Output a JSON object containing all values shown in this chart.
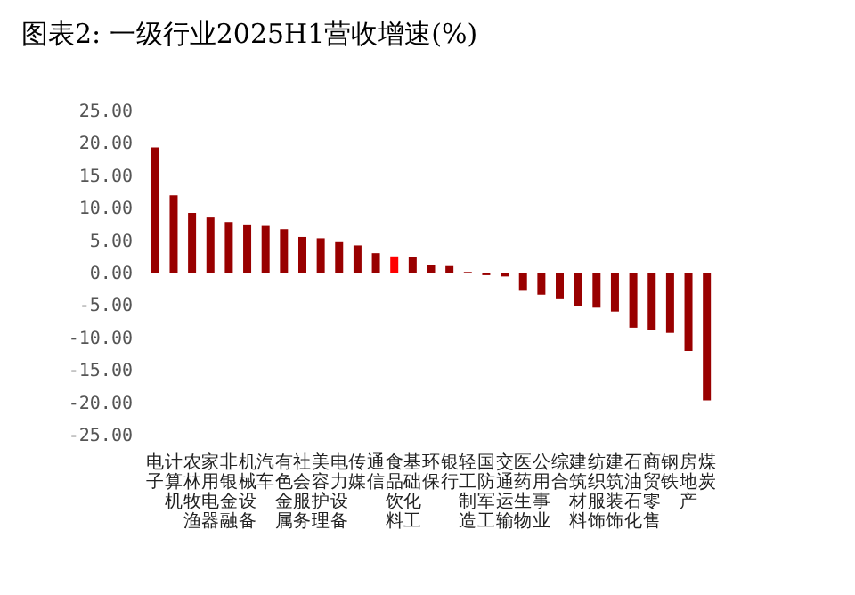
{
  "chart_data": {
    "type": "bar",
    "title": "图表2: 一级行业2025H1营收增速(%)",
    "categories": [
      "电子",
      "计算机",
      "农林牧渔",
      "家用电器",
      "非银金融",
      "机械设备",
      "汽车",
      "有色金属",
      "社会服务",
      "美容护理",
      "电力设备",
      "传媒",
      "通信",
      "食品饮料",
      "基础化工",
      "环保",
      "银行",
      "轻工制造",
      "国防军工",
      "交通运输",
      "医药生物",
      "公用事业",
      "综合",
      "建筑材料",
      "纺织服饰",
      "建筑装饰",
      "石油石化",
      "商贸零售",
      "钢铁",
      "房地产",
      "煤炭"
    ],
    "values": [
      19.3,
      11.9,
      9.2,
      8.5,
      7.8,
      7.3,
      7.2,
      6.7,
      5.5,
      5.3,
      4.7,
      4.2,
      3.0,
      2.5,
      2.4,
      1.2,
      1.0,
      0.1,
      -0.4,
      -0.6,
      -2.8,
      -3.4,
      -4.1,
      -5.1,
      -5.4,
      -6.0,
      -8.5,
      -8.9,
      -9.3,
      -12.1,
      -19.7
    ],
    "colors": [
      "#990000",
      "#990000",
      "#990000",
      "#990000",
      "#990000",
      "#990000",
      "#990000",
      "#990000",
      "#990000",
      "#990000",
      "#990000",
      "#990000",
      "#990000",
      "#ff0000",
      "#990000",
      "#990000",
      "#990000",
      "#990000",
      "#990000",
      "#990000",
      "#990000",
      "#990000",
      "#990000",
      "#990000",
      "#990000",
      "#990000",
      "#990000",
      "#990000",
      "#990000",
      "#990000",
      "#990000"
    ],
    "ylim": [
      -25,
      25
    ],
    "yticks": [
      {
        "value": -25,
        "label": "-25.00"
      },
      {
        "value": -20,
        "label": "-20.00"
      },
      {
        "value": -15,
        "label": "-15.00"
      },
      {
        "value": -10,
        "label": "-10.00"
      },
      {
        "value": -5,
        "label": "-5.00"
      },
      {
        "value": 0,
        "label": "0.00"
      },
      {
        "value": 5,
        "label": "5.00"
      },
      {
        "value": 10,
        "label": "10.00"
      },
      {
        "value": 15,
        "label": "15.00"
      },
      {
        "value": 20,
        "label": "20.00"
      },
      {
        "value": 25,
        "label": "25.00"
      }
    ],
    "grid": false
  }
}
